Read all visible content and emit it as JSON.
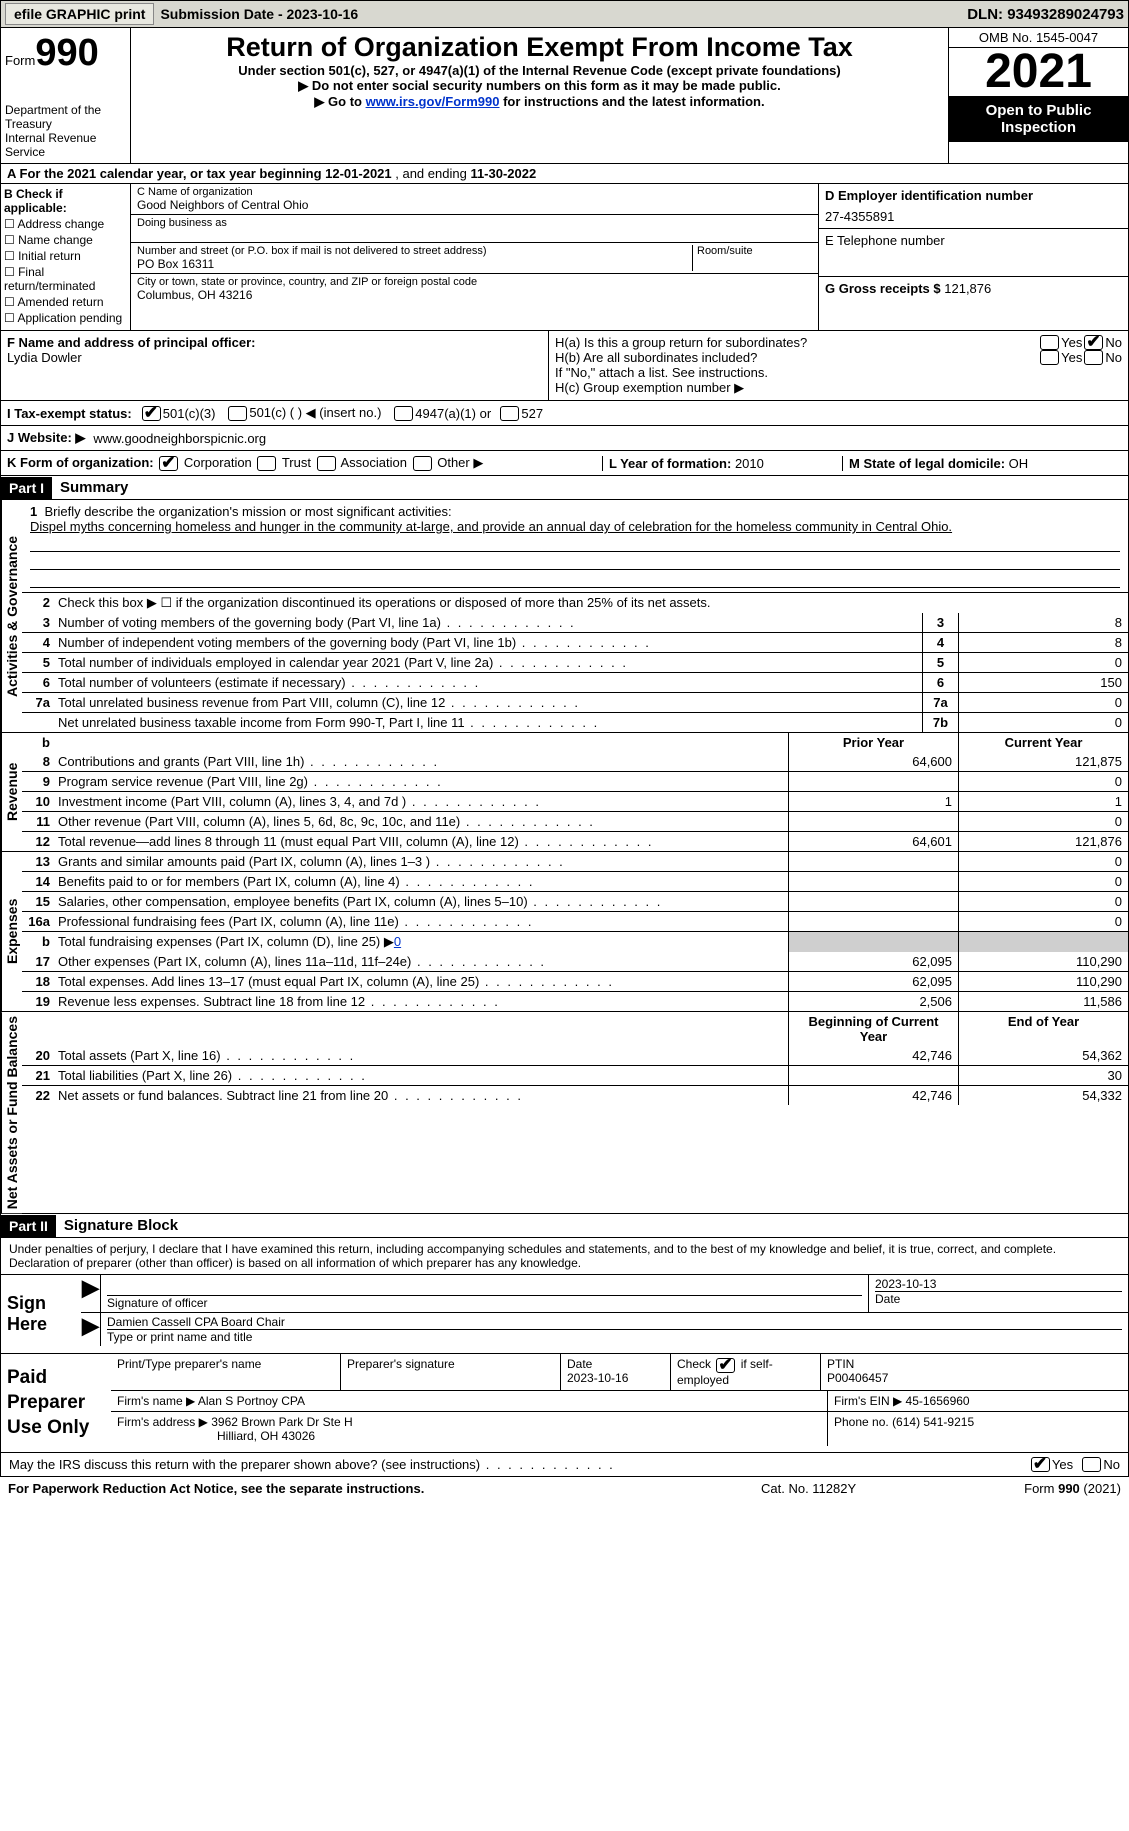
{
  "topbar": {
    "efile_btn": "efile GRAPHIC print",
    "submission_label": "Submission Date - 2023-10-16",
    "dln_label": "DLN: 93493289024793"
  },
  "header": {
    "form_word": "Form",
    "form_number": "990",
    "dept": "Department of the Treasury",
    "irs": "Internal Revenue Service",
    "title": "Return of Organization Exempt From Income Tax",
    "subtitle": "Under section 501(c), 527, or 4947(a)(1) of the Internal Revenue Code (except private foundations)",
    "note1": "▶ Do not enter social security numbers on this form as it may be made public.",
    "note2_pre": "▶ Go to ",
    "note2_link": "www.irs.gov/Form990",
    "note2_post": " for instructions and the latest information.",
    "omb": "OMB No. 1545-0047",
    "year": "2021",
    "open": "Open to Public Inspection"
  },
  "section_a": {
    "text_pre": "A For the 2021 calendar year, or tax year beginning ",
    "begin": "12-01-2021",
    "mid": " , and ending ",
    "end": "11-30-2022"
  },
  "col_b": {
    "header": "B Check if applicable:",
    "opts": [
      "Address change",
      "Name change",
      "Initial return",
      "Final return/terminated",
      "Amended return",
      "Application pending"
    ]
  },
  "col_c": {
    "name_label": "C Name of organization",
    "name": "Good Neighbors of Central Ohio",
    "dba_label": "Doing business as",
    "dba": "",
    "addr_label": "Number and street (or P.O. box if mail is not delivered to street address)",
    "room_label": "Room/suite",
    "addr": "PO Box 16311",
    "city_label": "City or town, state or province, country, and ZIP or foreign postal code",
    "city": "Columbus, OH  43216"
  },
  "col_d": {
    "ein_label": "D Employer identification number",
    "ein": "27-4355891",
    "phone_label": "E Telephone number",
    "phone": "",
    "gross_label": "G Gross receipts $",
    "gross": "121,876"
  },
  "row_f": {
    "label": "F  Name and address of principal officer:",
    "name": "Lydia Dowler"
  },
  "row_h": {
    "ha_label": "H(a)  Is this a group return for subordinates?",
    "hb_label": "H(b)  Are all subordinates included?",
    "hb_note": "If \"No,\" attach a list. See instructions.",
    "hc_label": "H(c)  Group exemption number ▶",
    "yes": "Yes",
    "no": "No"
  },
  "row_i": {
    "label": "I  Tax-exempt status:",
    "o1": "501(c)(3)",
    "o2": "501(c) (   ) ◀ (insert no.)",
    "o3": "4947(a)(1) or",
    "o4": "527"
  },
  "row_j": {
    "label": "J  Website: ▶",
    "value": "www.goodneighborspicnic.org"
  },
  "row_k": {
    "label": "K Form of organization:",
    "o1": "Corporation",
    "o2": "Trust",
    "o3": "Association",
    "o4": "Other ▶",
    "l_label": "L Year of formation:",
    "l_val": "2010",
    "m_label": "M State of legal domicile:",
    "m_val": "OH"
  },
  "part1": {
    "tag": "Part I",
    "title": "Summary",
    "vtab_ag": "Activities & Governance",
    "vtab_rev": "Revenue",
    "vtab_exp": "Expenses",
    "vtab_na": "Net Assets or Fund Balances",
    "line1_label": "Briefly describe the organization's mission or most significant activities:",
    "line1_text": "Dispel myths concerning homeless and hunger in the community at-large, and provide an annual day of celebration for the homeless community in Central Ohio.",
    "line2": "Check this box ▶ ☐ if the organization discontinued its operations or disposed of more than 25% of its net assets.",
    "lines_single": [
      {
        "n": "3",
        "d": "Number of voting members of the governing body (Part VI, line 1a)",
        "b": "3",
        "v": "8"
      },
      {
        "n": "4",
        "d": "Number of independent voting members of the governing body (Part VI, line 1b)",
        "b": "4",
        "v": "8"
      },
      {
        "n": "5",
        "d": "Total number of individuals employed in calendar year 2021 (Part V, line 2a)",
        "b": "5",
        "v": "0"
      },
      {
        "n": "6",
        "d": "Total number of volunteers (estimate if necessary)",
        "b": "6",
        "v": "150"
      },
      {
        "n": "7a",
        "d": "Total unrelated business revenue from Part VIII, column (C), line 12",
        "b": "7a",
        "v": "0"
      },
      {
        "n": "",
        "d": "Net unrelated business taxable income from Form 990-T, Part I, line 11",
        "b": "7b",
        "v": "0"
      }
    ],
    "col_hdr_b": "b",
    "col_hdr_prior": "Prior Year",
    "col_hdr_curr": "Current Year",
    "rev_lines": [
      {
        "n": "8",
        "d": "Contributions and grants (Part VIII, line 1h)",
        "p": "64,600",
        "c": "121,875"
      },
      {
        "n": "9",
        "d": "Program service revenue (Part VIII, line 2g)",
        "p": "",
        "c": "0"
      },
      {
        "n": "10",
        "d": "Investment income (Part VIII, column (A), lines 3, 4, and 7d )",
        "p": "1",
        "c": "1"
      },
      {
        "n": "11",
        "d": "Other revenue (Part VIII, column (A), lines 5, 6d, 8c, 9c, 10c, and 11e)",
        "p": "",
        "c": "0"
      },
      {
        "n": "12",
        "d": "Total revenue—add lines 8 through 11 (must equal Part VIII, column (A), line 12)",
        "p": "64,601",
        "c": "121,876"
      }
    ],
    "exp_lines": [
      {
        "n": "13",
        "d": "Grants and similar amounts paid (Part IX, column (A), lines 1–3 )",
        "p": "",
        "c": "0"
      },
      {
        "n": "14",
        "d": "Benefits paid to or for members (Part IX, column (A), line 4)",
        "p": "",
        "c": "0"
      },
      {
        "n": "15",
        "d": "Salaries, other compensation, employee benefits (Part IX, column (A), lines 5–10)",
        "p": "",
        "c": "0"
      },
      {
        "n": "16a",
        "d": "Professional fundraising fees (Part IX, column (A), line 11e)",
        "p": "",
        "c": "0"
      }
    ],
    "line16b_n": "b",
    "line16b_d": "Total fundraising expenses (Part IX, column (D), line 25) ▶",
    "line16b_v": "0",
    "exp_lines2": [
      {
        "n": "17",
        "d": "Other expenses (Part IX, column (A), lines 11a–11d, 11f–24e)",
        "p": "62,095",
        "c": "110,290"
      },
      {
        "n": "18",
        "d": "Total expenses. Add lines 13–17 (must equal Part IX, column (A), line 25)",
        "p": "62,095",
        "c": "110,290"
      },
      {
        "n": "19",
        "d": "Revenue less expenses. Subtract line 18 from line 12",
        "p": "2,506",
        "c": "11,586"
      }
    ],
    "na_hdr_prior": "Beginning of Current Year",
    "na_hdr_curr": "End of Year",
    "na_lines": [
      {
        "n": "20",
        "d": "Total assets (Part X, line 16)",
        "p": "42,746",
        "c": "54,362"
      },
      {
        "n": "21",
        "d": "Total liabilities (Part X, line 26)",
        "p": "",
        "c": "30"
      },
      {
        "n": "22",
        "d": "Net assets or fund balances. Subtract line 21 from line 20",
        "p": "42,746",
        "c": "54,332"
      }
    ]
  },
  "part2": {
    "tag": "Part II",
    "title": "Signature Block",
    "decl": "Under penalties of perjury, I declare that I have examined this return, including accompanying schedules and statements, and to the best of my knowledge and belief, it is true, correct, and complete. Declaration of preparer (other than officer) is based on all information of which preparer has any knowledge.",
    "sign_here": "Sign Here",
    "sig_officer": "Signature of officer",
    "sig_date": "2023-10-13",
    "date_label": "Date",
    "officer_name": "Damien Cassell CPA  Board Chair",
    "type_label": "Type or print name and title",
    "paid_prep": "Paid Preparer Use Only",
    "pp_name_label": "Print/Type preparer's name",
    "pp_sig_label": "Preparer's signature",
    "pp_date_label": "Date",
    "pp_date": "2023-10-16",
    "pp_check_label": "Check ☑ if self-employed",
    "pp_ptin_label": "PTIN",
    "pp_ptin": "P00406457",
    "firm_name_label": "Firm's name     ▶",
    "firm_name": "Alan S Portnoy CPA",
    "firm_ein_label": "Firm's EIN ▶",
    "firm_ein": "45-1656960",
    "firm_addr_label": "Firm's address ▶",
    "firm_addr1": "3962 Brown Park Dr Ste H",
    "firm_addr2": "Hilliard, OH  43026",
    "firm_phone_label": "Phone no.",
    "firm_phone": "(614) 541-9215",
    "discuss": "May the IRS discuss this return with the preparer shown above? (see instructions)",
    "yes": "Yes",
    "no": "No"
  },
  "footer": {
    "pra": "For Paperwork Reduction Act Notice, see the separate instructions.",
    "cat": "Cat. No. 11282Y",
    "form": "Form 990 (2021)"
  }
}
